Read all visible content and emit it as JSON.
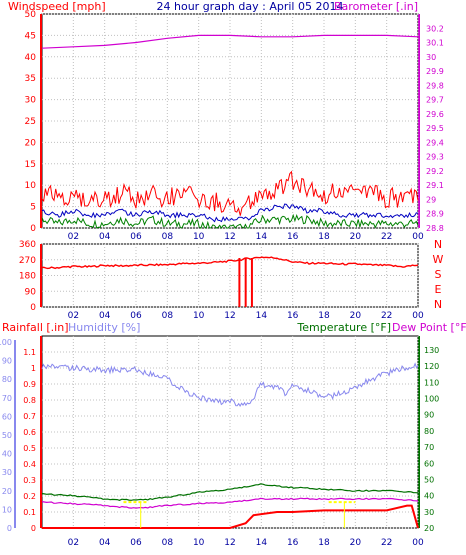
{
  "header": {
    "windspeed_label": "Windspeed [mph]",
    "title": "24 hour graph day : April 05 2014",
    "barometer_label": "Barometer [.in]"
  },
  "colors": {
    "background": "#ffffff",
    "plot_bg": "#ffffff",
    "grid": "#c0c0c0",
    "red": "#ff0000",
    "blue": "#0000c0",
    "green": "#008000",
    "magenta": "#d000d0",
    "lavender": "#8888ee",
    "yellow": "#ffff00",
    "darkgreen": "#007000"
  },
  "chart_data": [
    {
      "type": "line",
      "name_key": "wind",
      "x_ticks": [
        "02",
        "04",
        "06",
        "08",
        "10",
        "12",
        "14",
        "16",
        "18",
        "20",
        "22",
        "00"
      ],
      "ylabel": "Windspeed [mph]",
      "ylim": [
        0,
        50
      ],
      "y_ticks": [
        0,
        5,
        10,
        15,
        20,
        25,
        30,
        35,
        40,
        45,
        50
      ],
      "y2label": "Barometer [.in]",
      "y2lim": [
        28.8,
        30.3
      ],
      "y2_ticks": [
        "28.8",
        "28.9",
        "29",
        "29.1",
        "29.2",
        "29.3",
        "29.4",
        "29.5",
        "29.6",
        "29.7",
        "29.8",
        "29.9",
        "30",
        "30.1",
        "30.2"
      ],
      "series": [
        {
          "color_key": "magenta",
          "axis": "right",
          "x": [
            0,
            2,
            4,
            6,
            8,
            10,
            12,
            14,
            16,
            18,
            20,
            22,
            24
          ],
          "values": [
            30.06,
            30.07,
            30.08,
            30.1,
            30.13,
            30.15,
            30.15,
            30.14,
            30.14,
            30.15,
            30.15,
            30.15,
            30.14
          ]
        },
        {
          "color_key": "red",
          "axis": "left",
          "x": [
            0,
            1,
            2,
            3,
            4,
            5,
            6,
            7,
            8,
            9,
            10,
            11,
            12,
            13,
            14,
            15,
            16,
            17,
            18,
            19,
            20,
            21,
            22,
            23,
            24
          ],
          "values": [
            8,
            7,
            8,
            6,
            7,
            8,
            7,
            8,
            7,
            8,
            7,
            6,
            5,
            5,
            8,
            9,
            11,
            9,
            8,
            8,
            8,
            8,
            7,
            7,
            7
          ]
        },
        {
          "color_key": "blue",
          "axis": "left",
          "x": [
            0,
            1,
            2,
            3,
            4,
            5,
            6,
            7,
            8,
            9,
            10,
            11,
            12,
            13,
            14,
            15,
            16,
            17,
            18,
            19,
            20,
            21,
            22,
            23,
            24
          ],
          "values": [
            4,
            3,
            4,
            3,
            3,
            4,
            3,
            4,
            3,
            3,
            3,
            2,
            2,
            2,
            4,
            5,
            5,
            4,
            4,
            3,
            3,
            3,
            3,
            3,
            3
          ]
        },
        {
          "color_key": "green",
          "axis": "left",
          "x": [
            0,
            1,
            2,
            3,
            4,
            5,
            6,
            7,
            8,
            9,
            10,
            11,
            12,
            13,
            14,
            15,
            16,
            17,
            18,
            19,
            20,
            21,
            22,
            23,
            24
          ],
          "values": [
            2,
            1,
            2,
            1,
            1,
            2,
            1,
            2,
            1,
            1,
            1,
            0,
            0,
            0,
            2,
            2,
            2,
            2,
            1,
            1,
            1,
            1,
            1,
            1,
            1
          ]
        }
      ]
    },
    {
      "type": "scatter",
      "name_key": "direction",
      "x_ticks": [
        "02",
        "04",
        "06",
        "08",
        "10",
        "12",
        "14",
        "16",
        "18",
        "20",
        "22",
        "00"
      ],
      "ylim": [
        0,
        360
      ],
      "y_ticks": [
        0,
        90,
        180,
        270,
        360
      ],
      "compass": [
        "N",
        "W",
        "S",
        "E",
        "N"
      ],
      "series": [
        {
          "color_key": "red",
          "x": [
            0,
            1,
            2,
            3,
            4,
            5,
            6,
            7,
            8,
            9,
            10,
            11,
            12,
            12.5,
            13,
            13.5,
            14,
            15,
            16,
            17,
            18,
            19,
            20,
            21,
            22,
            23,
            24
          ],
          "values": [
            222,
            225,
            232,
            230,
            238,
            235,
            238,
            240,
            242,
            248,
            250,
            255,
            262,
            268,
            275,
            280,
            285,
            280,
            258,
            250,
            250,
            245,
            246,
            240,
            238,
            230,
            240
          ]
        }
      ]
    },
    {
      "type": "line",
      "name_key": "climate",
      "rain_label": "Rainfall [.in]",
      "humidity_label": "Humidity [%]",
      "temp_label": "Temperature [°F]",
      "dew_label": "Dew Point [°F]",
      "x_ticks": [
        "02",
        "04",
        "06",
        "08",
        "10",
        "12",
        "14",
        "16",
        "18",
        "20",
        "22",
        "00"
      ],
      "humidity_lim": [
        0,
        100
      ],
      "humidity_ticks": [
        0,
        10,
        20,
        30,
        40,
        50,
        60,
        70,
        80,
        90,
        100
      ],
      "rain_lim": [
        0,
        1.2
      ],
      "rain_ticks": [
        "0",
        "0.1",
        "0.2",
        "0.3",
        "0.4",
        "0.5",
        "0.6",
        "0.7",
        "0.8",
        "0.9",
        "1",
        "1.1"
      ],
      "temp_lim": [
        20,
        130
      ],
      "temp_ticks": [
        20,
        30,
        40,
        50,
        60,
        70,
        80,
        90,
        100,
        110,
        120,
        130
      ],
      "series": [
        {
          "color_key": "lavender",
          "axis": "humidity",
          "x": [
            0,
            2,
            4,
            6,
            8,
            9,
            10,
            11,
            12,
            13,
            13.5,
            14,
            14.5,
            15,
            15.5,
            16,
            16.5,
            17,
            18,
            19,
            20,
            21,
            22,
            23,
            24
          ],
          "values": [
            87,
            86,
            85,
            85,
            80,
            74,
            70,
            68,
            68,
            66,
            70,
            78,
            75,
            77,
            72,
            78,
            75,
            74,
            70,
            72,
            76,
            80,
            83,
            86,
            87
          ]
        },
        {
          "color_key": "darkgreen",
          "axis": "temp",
          "x": [
            0,
            2,
            4,
            6,
            8,
            10,
            12,
            14,
            16,
            18,
            20,
            22,
            24
          ],
          "values": [
            41,
            40,
            38,
            37,
            39,
            42,
            44,
            47,
            45,
            44,
            43,
            43,
            42
          ]
        },
        {
          "color_key": "magenta",
          "axis": "temp",
          "x": [
            0,
            2,
            4,
            6,
            8,
            10,
            12,
            14,
            16,
            18,
            20,
            22,
            24
          ],
          "values": [
            36,
            35,
            34,
            32,
            34,
            35,
            36,
            38,
            38,
            38,
            38,
            38,
            37
          ]
        },
        {
          "color_key": "red",
          "axis": "rain",
          "x": [
            0,
            12,
            13,
            13.5,
            15,
            16,
            18,
            20,
            22,
            23.3,
            23.6,
            24
          ],
          "values": [
            0,
            0,
            0.03,
            0.08,
            0.1,
            0.1,
            0.11,
            0.11,
            0.11,
            0.14,
            0.14,
            0.0
          ]
        }
      ]
    }
  ]
}
